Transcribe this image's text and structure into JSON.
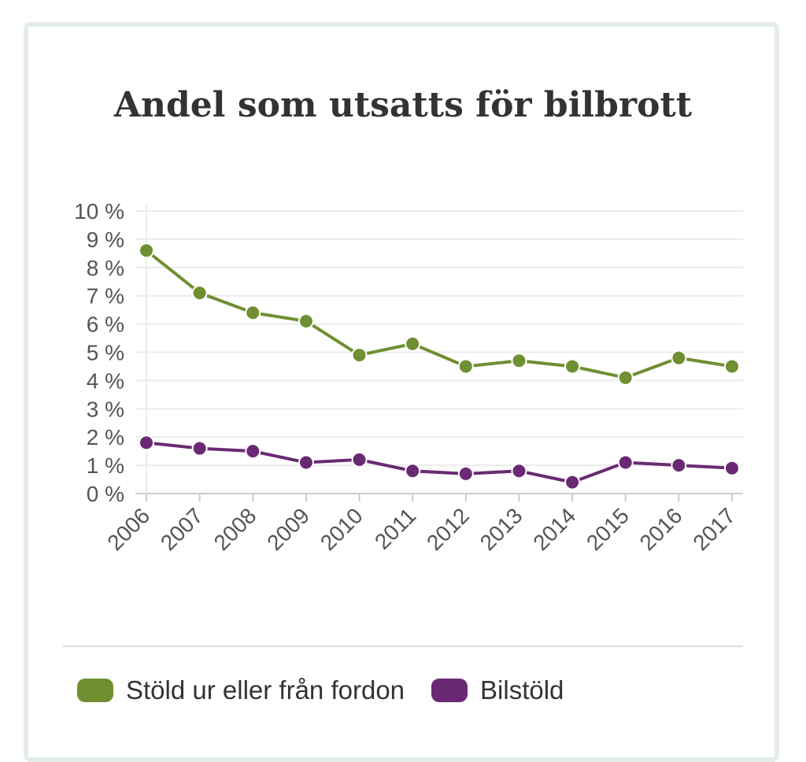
{
  "chart_data": {
    "type": "line",
    "title": "Andel som utsatts för bilbrott",
    "categories": [
      "2006",
      "2007",
      "2008",
      "2009",
      "2010",
      "2011",
      "2012",
      "2013",
      "2014",
      "2015",
      "2016",
      "2017"
    ],
    "y_ticks": [
      "0 %",
      "1 %",
      "2 %",
      "3 %",
      "4 %",
      "5 %",
      "6 %",
      "7 %",
      "8 %",
      "9 %",
      "10 %"
    ],
    "ylim": [
      0,
      10
    ],
    "ylabel": "",
    "xlabel": "",
    "grid": true,
    "legend_position": "bottom",
    "series": [
      {
        "name": "Stöld ur eller från fordon",
        "color": "#6f8f32",
        "values": [
          8.6,
          7.1,
          6.4,
          6.1,
          4.9,
          5.3,
          4.5,
          4.7,
          4.5,
          4.1,
          4.8,
          4.5
        ]
      },
      {
        "name": "Bilstöld",
        "color": "#6a2a73",
        "values": [
          1.8,
          1.6,
          1.5,
          1.1,
          1.2,
          0.8,
          0.7,
          0.8,
          0.4,
          1.1,
          1.0,
          0.9
        ]
      }
    ]
  }
}
